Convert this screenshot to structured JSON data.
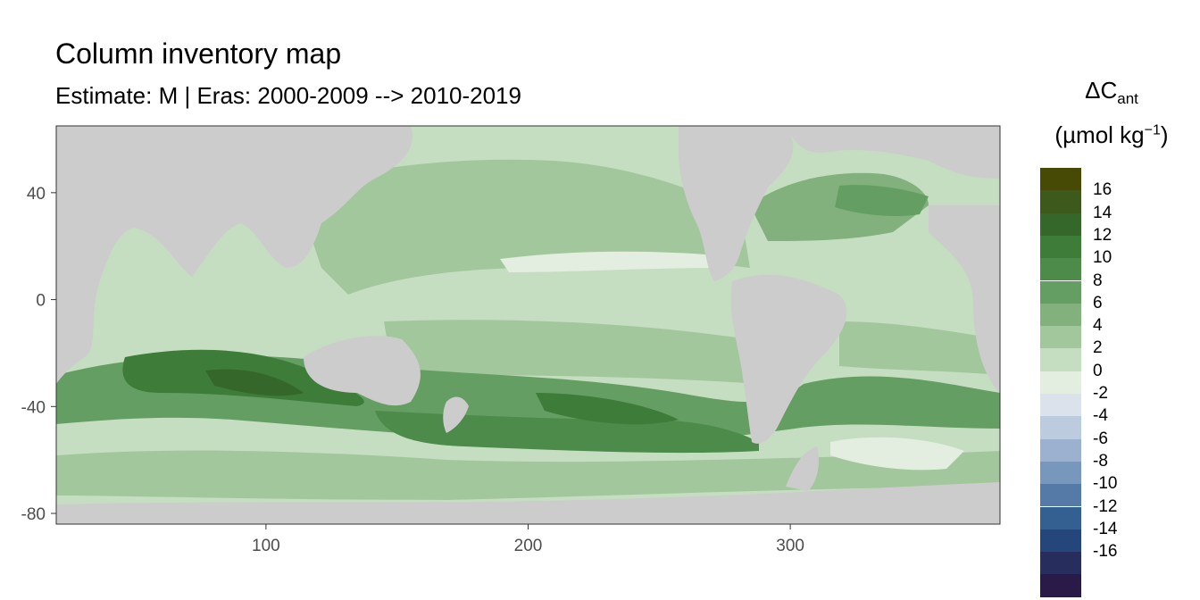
{
  "title": "Column inventory map",
  "subtitle": "Estimate: M  | Eras: 2000-2009 --> 2010-2019",
  "legend": {
    "title_main": "ΔC",
    "title_sub": "ant",
    "unit_prefix": "(µmol kg",
    "unit_sup": "−1",
    "unit_suffix": ")",
    "bins": [
      {
        "color": "#474a04",
        "label": ""
      },
      {
        "color": "#3d5a1c",
        "label": "16"
      },
      {
        "color": "#36672a",
        "label": "14"
      },
      {
        "color": "#3e7c3a",
        "label": "12"
      },
      {
        "color": "#4c8b4a",
        "label": "10"
      },
      {
        "color": "#649e62",
        "label": "8"
      },
      {
        "color": "#82b17d",
        "label": "6"
      },
      {
        "color": "#a3c79c",
        "label": "4"
      },
      {
        "color": "#c5dec1",
        "label": "2"
      },
      {
        "color": "#e3eee0",
        "label": "0"
      },
      {
        "color": "#dbe2ec",
        "label": "-2"
      },
      {
        "color": "#bccbde",
        "label": "-4"
      },
      {
        "color": "#9bb1cf",
        "label": "-6"
      },
      {
        "color": "#7797bc",
        "label": "-8"
      },
      {
        "color": "#557aa8",
        "label": "-10"
      },
      {
        "color": "#345f91",
        "label": "-12"
      },
      {
        "color": "#24467b",
        "label": "-14"
      },
      {
        "color": "#272d5c",
        "label": "-16"
      },
      {
        "color": "#2a1a47",
        "label": ""
      }
    ]
  },
  "map": {
    "x_range": [
      20,
      380
    ],
    "y_range": [
      -84,
      65
    ],
    "x_ticks": [
      100,
      200,
      300
    ],
    "y_ticks": [
      40,
      0,
      -40,
      -80
    ],
    "land_color": "#cccccc",
    "ocean_base_color": "#c5dec1"
  }
}
